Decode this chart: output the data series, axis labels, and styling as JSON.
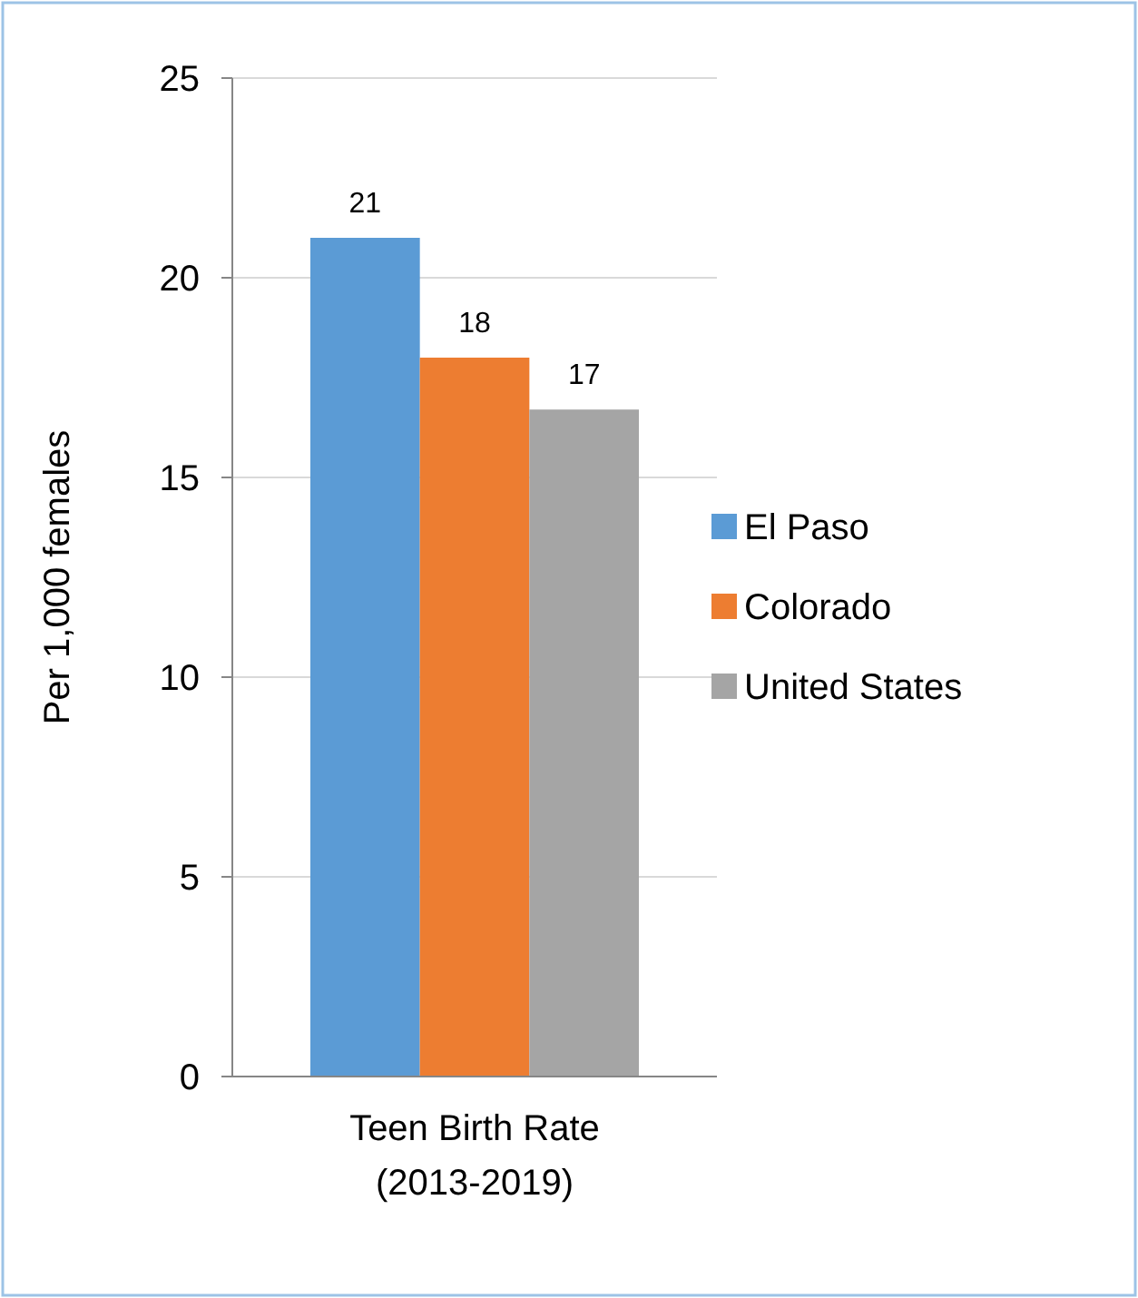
{
  "chart_data": {
    "type": "bar",
    "ylabel": "Per 1,000 females",
    "categories": [
      "Teen Birth Rate (2013-2019)"
    ],
    "series": [
      {
        "name": "El Paso",
        "color": "#5b9bd5",
        "values": [
          21
        ],
        "value_labels": [
          "21"
        ]
      },
      {
        "name": "Colorado",
        "color": "#ed7d31",
        "values": [
          18
        ],
        "value_labels": [
          "18"
        ]
      },
      {
        "name": "United States",
        "color": "#a5a5a5",
        "values": [
          16.7
        ],
        "value_labels": [
          "17"
        ]
      }
    ],
    "ylim": [
      0,
      25
    ],
    "yticks": [
      0,
      5,
      10,
      15,
      20,
      25
    ],
    "grid": "y",
    "legend": "right"
  }
}
